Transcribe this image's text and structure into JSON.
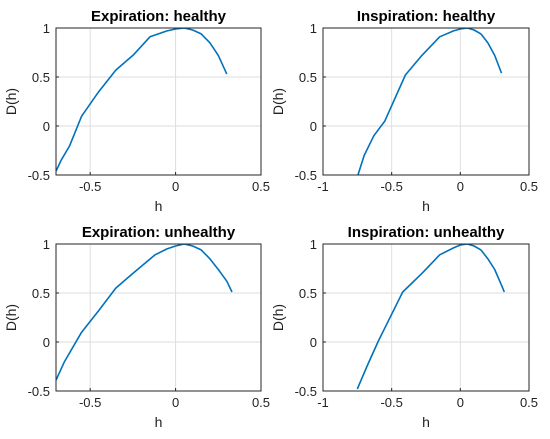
{
  "colors": {
    "series": "#0072BD",
    "grid": "#dedede",
    "axes": "#262626"
  },
  "chart_data": [
    {
      "type": "line",
      "title": "Expiration: healthy",
      "xlabel": "h",
      "ylabel": "D(h)",
      "xlim": [
        -0.7,
        0.5
      ],
      "ylim": [
        -0.5,
        1.0
      ],
      "xticks": [
        -0.5,
        0,
        0.5
      ],
      "xticklabels": [
        "-0.5",
        "0",
        "0.5"
      ],
      "yticks": [
        -0.5,
        0,
        0.5,
        1
      ],
      "yticklabels": [
        "-0.5",
        "0",
        "0.5",
        "1"
      ],
      "grid": true,
      "x": [
        -0.7,
        -0.67,
        -0.62,
        -0.55,
        -0.45,
        -0.35,
        -0.25,
        -0.15,
        -0.05,
        0.0,
        0.05,
        0.1,
        0.15,
        0.2,
        0.25,
        0.3
      ],
      "y": [
        -0.46,
        -0.35,
        -0.2,
        0.1,
        0.35,
        0.57,
        0.72,
        0.91,
        0.97,
        0.99,
        1.0,
        0.98,
        0.94,
        0.85,
        0.72,
        0.53
      ]
    },
    {
      "type": "line",
      "title": "Inspiration: healthy",
      "xlabel": "h",
      "ylabel": "D(h)",
      "xlim": [
        -1.0,
        0.5
      ],
      "ylim": [
        -0.5,
        1.0
      ],
      "xticks": [
        -1,
        -0.5,
        0,
        0.5
      ],
      "xticklabels": [
        "-1",
        "-0.5",
        "0",
        "0.5"
      ],
      "yticks": [
        -0.5,
        0,
        0.5,
        1
      ],
      "yticklabels": [
        "-0.5",
        "0",
        "0.5",
        "1"
      ],
      "grid": true,
      "x": [
        -0.75,
        -0.7,
        -0.63,
        -0.55,
        -0.4,
        -0.28,
        -0.15,
        -0.05,
        0.0,
        0.05,
        0.1,
        0.15,
        0.2,
        0.25,
        0.3
      ],
      "y": [
        -0.52,
        -0.3,
        -0.1,
        0.05,
        0.52,
        0.72,
        0.91,
        0.97,
        0.99,
        1.0,
        0.98,
        0.94,
        0.85,
        0.72,
        0.54
      ]
    },
    {
      "type": "line",
      "title": "Expiration: unhealthy",
      "xlabel": "h",
      "ylabel": "D(h)",
      "xlim": [
        -0.7,
        0.5
      ],
      "ylim": [
        -0.5,
        1.0
      ],
      "xticks": [
        -0.5,
        0,
        0.5
      ],
      "xticklabels": [
        "-0.5",
        "0",
        "0.5"
      ],
      "yticks": [
        -0.5,
        0,
        0.5,
        1
      ],
      "yticklabels": [
        "-0.5",
        "0",
        "0.5",
        "1"
      ],
      "grid": true,
      "x": [
        -0.7,
        -0.65,
        -0.55,
        -0.45,
        -0.35,
        -0.25,
        -0.12,
        -0.05,
        0.0,
        0.05,
        0.1,
        0.15,
        0.2,
        0.25,
        0.3,
        0.33
      ],
      "y": [
        -0.39,
        -0.2,
        0.1,
        0.32,
        0.55,
        0.7,
        0.89,
        0.95,
        0.98,
        1.0,
        0.98,
        0.94,
        0.85,
        0.74,
        0.62,
        0.51
      ]
    },
    {
      "type": "line",
      "title": "Inspiration: unhealthy",
      "xlabel": "h",
      "ylabel": "D(h)",
      "xlim": [
        -1.0,
        0.5
      ],
      "ylim": [
        -0.5,
        1.0
      ],
      "xticks": [
        -1,
        -0.5,
        0,
        0.5
      ],
      "xticklabels": [
        "-1",
        "-0.5",
        "0",
        "0.5"
      ],
      "yticks": [
        -0.5,
        0,
        0.5,
        1
      ],
      "yticklabels": [
        "-0.5",
        "0",
        "0.5",
        "1"
      ],
      "grid": true,
      "x": [
        -0.75,
        -0.68,
        -0.6,
        -0.42,
        -0.28,
        -0.15,
        -0.05,
        0.0,
        0.05,
        0.1,
        0.15,
        0.2,
        0.25,
        0.3,
        0.32
      ],
      "y": [
        -0.48,
        -0.25,
        0.0,
        0.51,
        0.7,
        0.89,
        0.96,
        0.99,
        1.0,
        0.98,
        0.94,
        0.85,
        0.74,
        0.58,
        0.51
      ]
    }
  ]
}
